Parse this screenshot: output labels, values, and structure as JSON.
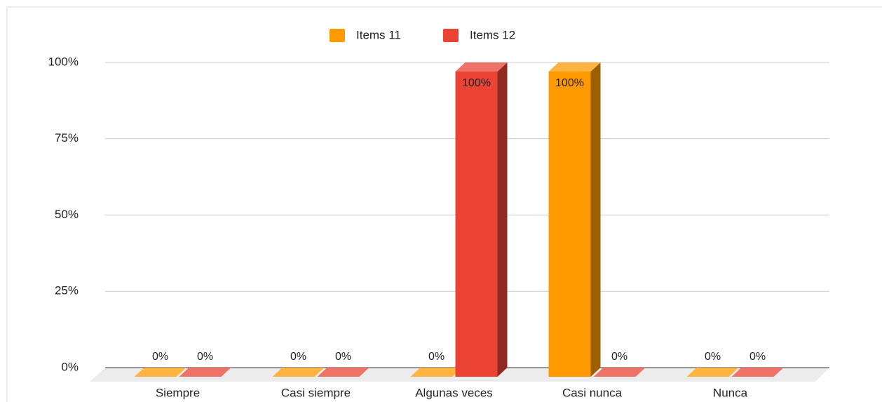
{
  "chart_data": {
    "type": "bar3d",
    "categories": [
      "Siempre",
      "Casi siempre",
      "Algunas veces",
      "Casi nunca",
      "Nunca"
    ],
    "series": [
      {
        "name": "Items 11",
        "color": "#ff9900",
        "values": [
          0,
          0,
          0,
          100,
          0
        ],
        "value_labels": [
          "0%",
          "0%",
          "0%",
          "100%",
          "0%"
        ]
      },
      {
        "name": "Items 12",
        "color": "#ea4335",
        "values": [
          0,
          0,
          100,
          0,
          0
        ],
        "value_labels": [
          "0%",
          "0%",
          "100%",
          "0%",
          "0%"
        ]
      }
    ],
    "ylim": [
      0,
      100
    ],
    "yticks": [
      {
        "value": 0,
        "label": "0%"
      },
      {
        "value": 25,
        "label": "25%"
      },
      {
        "value": 50,
        "label": "50%"
      },
      {
        "value": 75,
        "label": "75%"
      },
      {
        "value": 100,
        "label": "100%"
      }
    ],
    "grid": true,
    "legend": "top"
  }
}
